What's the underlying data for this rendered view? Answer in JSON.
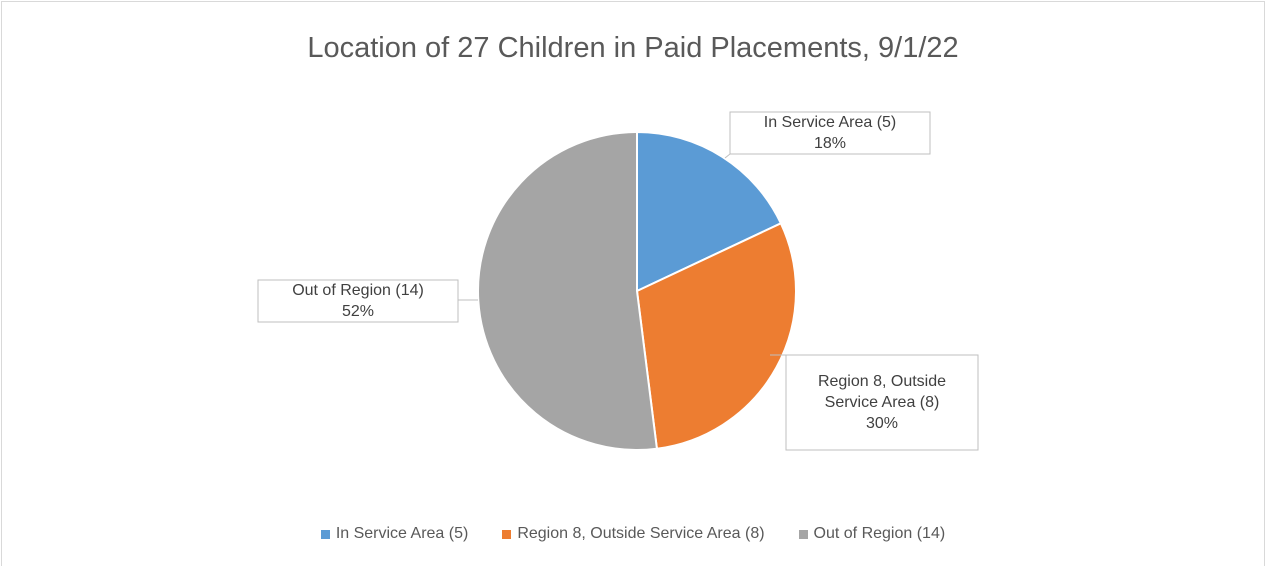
{
  "chart_data": {
    "type": "pie",
    "title": "Location of 27 Children in Paid Placements, 9/1/22",
    "categories": [
      "In Service Area (5)",
      "Region 8, Outside Service Area (8)",
      "Out of Region (14)"
    ],
    "values": [
      18,
      30,
      52
    ],
    "value_labels": [
      "18%",
      "30%",
      "52%"
    ],
    "colors": [
      "#5b9bd5",
      "#ed7d31",
      "#a5a5a5"
    ],
    "legend": "bottom"
  }
}
